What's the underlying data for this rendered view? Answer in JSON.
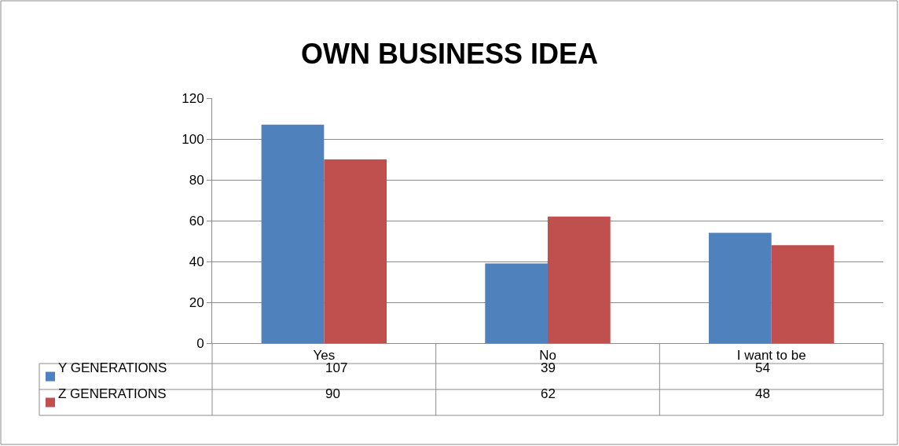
{
  "chart_data": {
    "type": "bar",
    "title": "OWN BUSINESS IDEA",
    "categories": [
      "Yes",
      "No",
      "I want to be"
    ],
    "series": [
      {
        "name": "Y GENERATIONS",
        "color": "#4f81bd",
        "values": [
          107,
          39,
          54
        ]
      },
      {
        "name": "Z GENERATIONS",
        "color": "#c0504d",
        "values": [
          90,
          62,
          48
        ]
      }
    ],
    "ylim": [
      0,
      120
    ],
    "yticks": [
      0,
      20,
      40,
      60,
      80,
      100,
      120
    ],
    "grid": "y",
    "legend": "bottom",
    "data_labels": true
  }
}
